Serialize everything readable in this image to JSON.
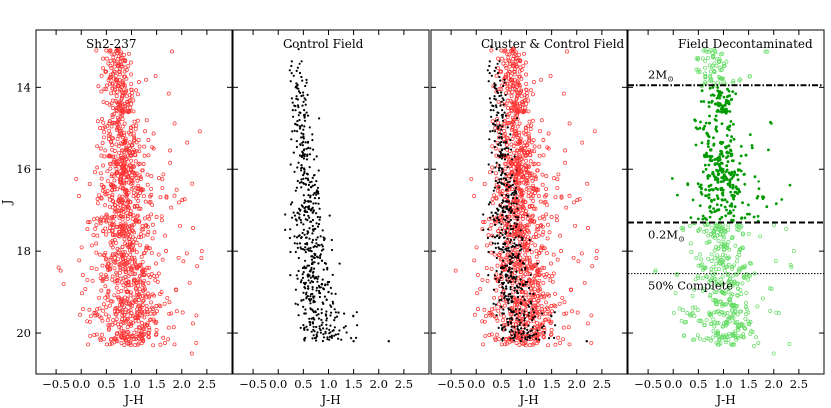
{
  "chart_data": {
    "type": "scatter",
    "ylabel": "J",
    "xlabel": "J-H",
    "ylim": [
      21.0,
      12.6
    ],
    "xlim": [
      -0.9,
      3.0
    ],
    "y_ticks": [
      14,
      16,
      18,
      20
    ],
    "y_tick_labels": [
      "14",
      "16",
      "18",
      "20"
    ],
    "x_ticks": [
      -0.5,
      0.0,
      0.5,
      1.0,
      1.5,
      2.0,
      2.5
    ],
    "x_tick_labels": [
      "−0.5",
      "0.0",
      "0.5",
      "1.0",
      "1.5",
      "2.0",
      "2.5"
    ],
    "panels": [
      {
        "title": "Sh2-237",
        "series": [
          {
            "color": "#ff3333",
            "marker": "open-circle",
            "x": [
              0.3,
              0.75,
              1.2,
              0.6,
              0.9,
              -0.45,
              -0.35,
              2.2,
              2.4,
              1.9,
              1.6
            ],
            "y": [
              13.1,
              15.0,
              16.5,
              17.2,
              18.1,
              18.4,
              18.8,
              20.5,
              18.0,
              16.5,
              19.0
            ]
          }
        ]
      },
      {
        "title": "Control Field",
        "series": [
          {
            "color": "#000000",
            "marker": "filled-circle",
            "x": [
              0.25,
              0.35,
              0.5,
              0.6,
              0.7,
              0.8,
              1.0,
              1.2,
              1.5,
              2.2
            ],
            "y": [
              13.0,
              14.0,
              15.2,
              16.5,
              17.5,
              18.3,
              19.0,
              19.5,
              20.2,
              20.2
            ]
          }
        ]
      },
      {
        "title": "Cluster & Control Field",
        "series": [
          {
            "color": "#ff3333",
            "marker": "open-circle",
            "x": [
              0.3,
              0.8,
              1.2,
              2.4
            ],
            "y": [
              13.1,
              16.0,
              18.0,
              18.0
            ]
          },
          {
            "color": "#000000",
            "marker": "filled-circle",
            "x": [
              0.3,
              0.6,
              0.8,
              2.2
            ],
            "y": [
              13.0,
              16.5,
              18.5,
              20.2
            ]
          }
        ]
      },
      {
        "title": "Field Decontaminated",
        "series": [
          {
            "color": "#009900",
            "marker": "filled-circle",
            "x": [
              0.75,
              0.85,
              1.0,
              1.2,
              1.7
            ],
            "y": [
              14.2,
              15.0,
              16.3,
              17.0,
              16.3
            ]
          },
          {
            "color": "#66dd66",
            "marker": "open-circle",
            "x": [
              0.6,
              0.9,
              1.1,
              1.4,
              2.0,
              2.4
            ],
            "y": [
              13.1,
              18.2,
              19.0,
              19.8,
              20.5,
              18.0
            ]
          }
        ],
        "hlines": [
          {
            "y": 13.95,
            "style": "dashdot",
            "label": "2M",
            "label_sub": "⊙"
          },
          {
            "y": 17.3,
            "style": "dashed",
            "label": "0.2M",
            "label_sub": "⊙"
          },
          {
            "y": 18.55,
            "style": "dotted",
            "label": "50% Complete"
          }
        ]
      }
    ]
  }
}
